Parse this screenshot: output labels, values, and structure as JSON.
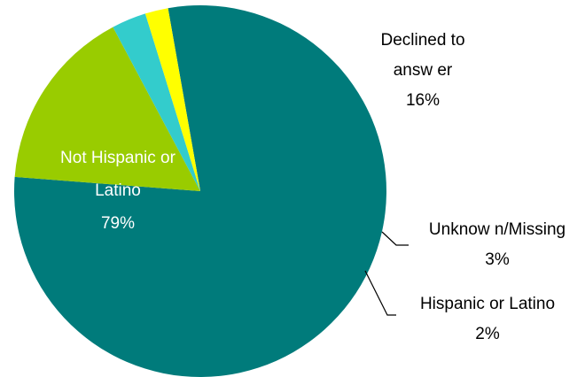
{
  "chart_data": {
    "type": "pie",
    "title": "",
    "slices": [
      {
        "label": "Not Hispanic or Latino",
        "label_lines": [
          "Not Hispanic or",
          "Latino"
        ],
        "value": 79,
        "value_label": "79%",
        "color": "#007B7B"
      },
      {
        "label": "Declined to answer",
        "label_lines": [
          "Declined to",
          "answ er"
        ],
        "value": 16,
        "value_label": "16%",
        "color": "#99CC00"
      },
      {
        "label": "Unknown/Missing",
        "label_lines": [
          "Unknow n/Missing"
        ],
        "value": 3,
        "value_label": "3%",
        "color": "#33CCCC"
      },
      {
        "label": "Hispanic or Latino",
        "label_lines": [
          "Hispanic or Latino"
        ],
        "value": 2,
        "value_label": "2%",
        "color": "#FFFF00"
      }
    ],
    "legend": "none"
  }
}
